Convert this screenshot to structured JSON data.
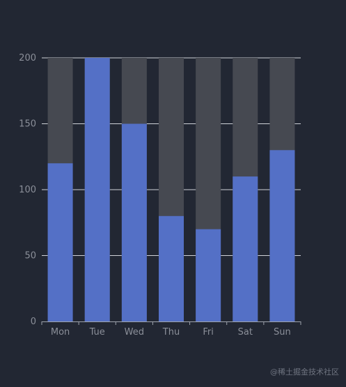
{
  "chart_data": {
    "type": "bar",
    "categories": [
      "Mon",
      "Tue",
      "Wed",
      "Thu",
      "Fri",
      "Sat",
      "Sun"
    ],
    "values": [
      120,
      200,
      150,
      80,
      70,
      110,
      130
    ],
    "background_max": 200,
    "ylim": [
      0,
      200
    ],
    "yticks": [
      "0",
      "50",
      "100",
      "150",
      "200"
    ],
    "grid": true,
    "title": "",
    "xlabel": "",
    "ylabel": ""
  },
  "colors": {
    "page_background": "#222733",
    "bar": "#5470c6",
    "bar_background": "#464951",
    "grid": "#d0d3d9",
    "axis": "#9ea3ad",
    "tick_text": "#8b8f99"
  },
  "watermark": "@稀土掘金技术社区"
}
